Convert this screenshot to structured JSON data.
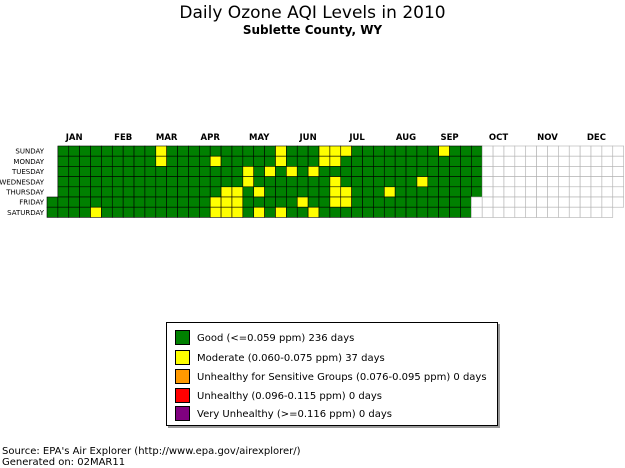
{
  "chart_data": {
    "type": "heatmap",
    "title": "Daily Ozone AQI Levels in 2010",
    "subtitle": "Sublette County, WY",
    "year": 2010,
    "weekdays": [
      "SUNDAY",
      "MONDAY",
      "TUESDAY",
      "WEDNESDAY",
      "THURSDAY",
      "FRIDAY",
      "SATURDAY"
    ],
    "months": [
      "JAN",
      "FEB",
      "MAR",
      "APR",
      "MAY",
      "JUN",
      "JUL",
      "AUG",
      "SEP",
      "OCT",
      "NOV",
      "DEC"
    ],
    "data_through": "2010-09-30",
    "category_colors": {
      "good": "#008000",
      "moderate": "#ffff00",
      "usg": "#ff9900",
      "unhealthy": "#ff0000",
      "very_unhealthy": "#800080",
      "no_data": "#ffffff"
    },
    "default_category": "good",
    "moderate_days": [
      "2010-01-30",
      "2010-03-07",
      "2010-03-08",
      "2010-04-12",
      "2010-04-16",
      "2010-04-17",
      "2010-04-22",
      "2010-04-23",
      "2010-04-24",
      "2010-04-29",
      "2010-04-30",
      "2010-05-01",
      "2010-05-04",
      "2010-05-05",
      "2010-05-13",
      "2010-05-15",
      "2010-05-18",
      "2010-05-23",
      "2010-05-24",
      "2010-05-29",
      "2010-06-01",
      "2010-06-11",
      "2010-06-15",
      "2010-06-19",
      "2010-06-20",
      "2010-06-21",
      "2010-06-27",
      "2010-06-28",
      "2010-06-30",
      "2010-07-01",
      "2010-07-02",
      "2010-07-04",
      "2010-07-08",
      "2010-07-09",
      "2010-08-05",
      "2010-08-25",
      "2010-09-05"
    ],
    "legend": [
      {
        "label": "Good (<=0.059 ppm) 236 days",
        "category": "good"
      },
      {
        "label": "Moderate (0.060-0.075 ppm)  37 days",
        "category": "moderate"
      },
      {
        "label": "Unhealthy for Sensitive Groups (0.076-0.095 ppm)    0 days",
        "category": "usg"
      },
      {
        "label": "Unhealthy (0.096-0.115 ppm)    0 days",
        "category": "unhealthy"
      },
      {
        "label": "Very Unhealthy (>=0.116 ppm)    0 days",
        "category": "very_unhealthy"
      }
    ]
  },
  "footer": {
    "source": "Source: EPA's Air Explorer (http://www.epa.gov/airexplorer/)",
    "generated": "Generated on: 02MAR11"
  }
}
